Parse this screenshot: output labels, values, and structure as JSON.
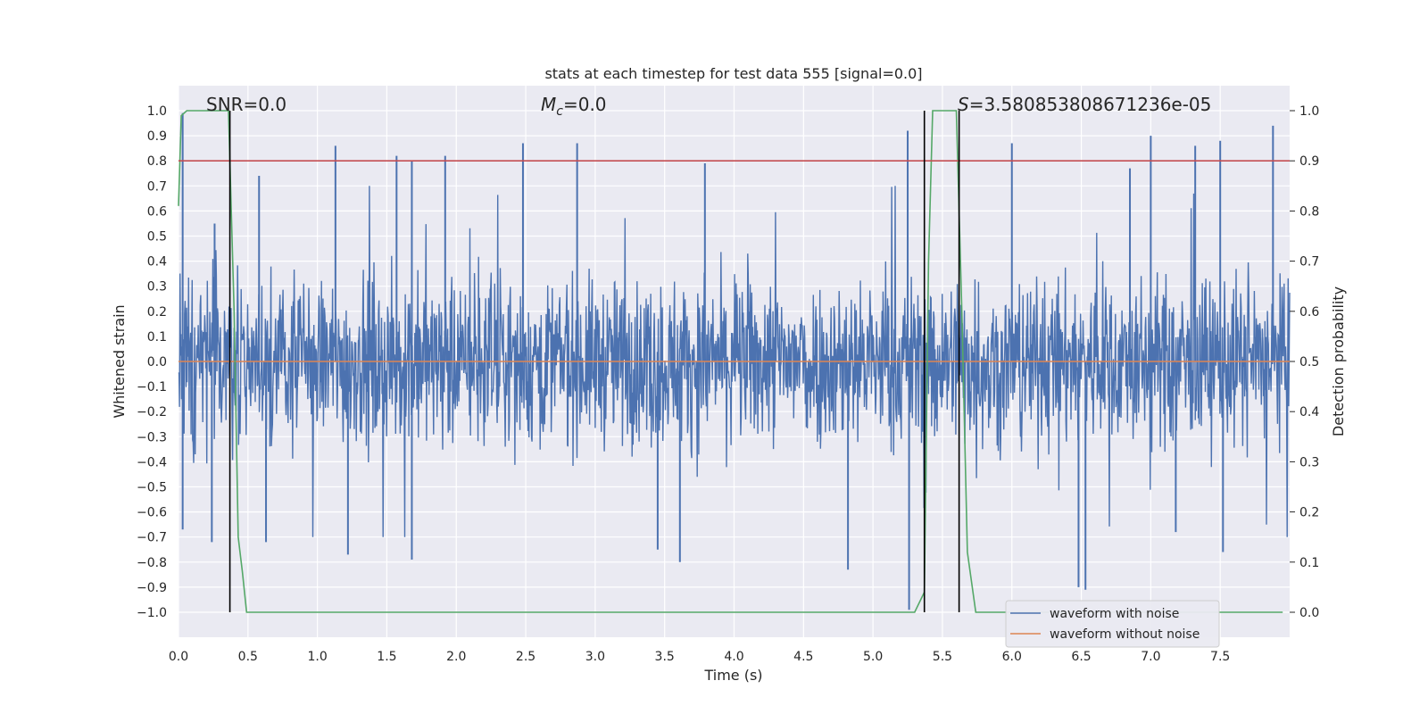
{
  "chart_data": {
    "type": "line",
    "title": "stats at each timestep for test data 555 [signal=0.0]",
    "xlabel": "Time (s)",
    "ylabel_left": "Whitened strain",
    "ylabel_right": "Detection probability",
    "xlim": [
      0.0,
      8.0
    ],
    "ylim_left": [
      -1.08,
      1.1
    ],
    "ylim_right": [
      -0.04,
      1.04
    ],
    "x_ticks": [
      0.0,
      0.5,
      1.0,
      1.5,
      2.0,
      2.5,
      3.0,
      3.5,
      4.0,
      4.5,
      5.0,
      5.5,
      6.0,
      6.5,
      7.0,
      7.5
    ],
    "x_tick_labels": [
      "0.0",
      "0.5",
      "1.0",
      "1.5",
      "2.0",
      "2.5",
      "3.0",
      "3.5",
      "4.0",
      "4.5",
      "5.0",
      "5.5",
      "6.0",
      "6.5",
      "7.0",
      "7.5"
    ],
    "y_ticks_left": [
      1.0,
      0.9,
      0.8,
      0.7,
      0.6,
      0.5,
      0.4,
      0.3,
      0.2,
      0.1,
      0.0,
      -0.1,
      -0.2,
      -0.3,
      -0.4,
      -0.5,
      -0.6,
      -0.7,
      -0.8,
      -0.9,
      -1.0
    ],
    "y_tick_labels_left": [
      "1.0",
      "0.9",
      "0.8",
      "0.7",
      "0.6",
      "0.5",
      "0.4",
      "0.3",
      "0.2",
      "0.1",
      "0.0",
      "−0.1",
      "−0.2",
      "−0.3",
      "−0.4",
      "−0.5",
      "−0.6",
      "−0.7",
      "−0.8",
      "−0.9",
      "−1.0"
    ],
    "y_ticks_right": [
      1.0,
      0.9,
      0.8,
      0.7,
      0.6,
      0.5,
      0.4,
      0.3,
      0.2,
      0.1,
      0.0
    ],
    "y_tick_labels_right": [
      "1.0",
      "0.9",
      "0.8",
      "0.7",
      "0.6",
      "0.5",
      "0.4",
      "0.3",
      "0.2",
      "0.1",
      "0.0"
    ],
    "grid": true,
    "threshold_right": 0.9,
    "vertical_lines_x": [
      0.37,
      5.37,
      5.62
    ],
    "annotations": [
      {
        "text": "SNR=0.0",
        "x": 0.2
      },
      {
        "text": "M",
        "sub": "c",
        "suffix": "=0.0",
        "x": 2.6
      },
      {
        "text": "S",
        "suffix": "=3.580853808671236e-05",
        "x": 5.62
      }
    ],
    "series": [
      {
        "name": "waveform with noise",
        "color": "#4c72b0",
        "axis": "left",
        "description": "noise waveform, amplitude mostly within [-0.45, 0.45] with spikes up to 0.99 and down to -0.99",
        "peak_points": [
          [
            0.03,
            0.99
          ],
          [
            0.26,
            0.55
          ],
          [
            0.58,
            0.74
          ],
          [
            1.13,
            0.86
          ],
          [
            1.57,
            0.82
          ],
          [
            1.68,
            0.8
          ],
          [
            1.92,
            0.82
          ],
          [
            2.48,
            0.87
          ],
          [
            2.87,
            0.87
          ],
          [
            3.79,
            0.79
          ],
          [
            5.25,
            0.92
          ],
          [
            6.0,
            0.87
          ],
          [
            6.85,
            0.77
          ],
          [
            7.0,
            0.9
          ],
          [
            7.32,
            0.86
          ],
          [
            7.5,
            0.88
          ],
          [
            7.88,
            0.94
          ]
        ],
        "trough_points": [
          [
            0.03,
            -0.67
          ],
          [
            0.24,
            -0.72
          ],
          [
            0.63,
            -0.72
          ],
          [
            1.22,
            -0.77
          ],
          [
            1.68,
            -0.79
          ],
          [
            3.45,
            -0.75
          ],
          [
            3.61,
            -0.8
          ],
          [
            4.82,
            -0.83
          ],
          [
            5.26,
            -0.99
          ],
          [
            6.48,
            -0.9
          ],
          [
            6.53,
            -0.91
          ],
          [
            7.18,
            -0.68
          ],
          [
            7.52,
            -0.76
          ]
        ]
      },
      {
        "name": "waveform without noise",
        "color": "#dd8452",
        "axis": "left",
        "x": [
          0.0,
          8.0
        ],
        "y": [
          0.0,
          0.0
        ]
      },
      {
        "name": "detection probability",
        "color": "#55a868",
        "axis": "right",
        "x": [
          0.0,
          0.02,
          0.06,
          0.12,
          0.2,
          0.36,
          0.4,
          0.43,
          0.46,
          0.49,
          5.2,
          5.3,
          5.37,
          5.4,
          5.43,
          5.6,
          5.64,
          5.68,
          5.74,
          7.95
        ],
        "y": [
          0.81,
          0.99,
          1.0,
          1.0,
          1.0,
          1.0,
          0.6,
          0.15,
          0.08,
          0.0,
          0.0,
          0.0,
          0.04,
          0.7,
          1.0,
          1.0,
          0.6,
          0.12,
          0.0,
          0.0
        ]
      },
      {
        "name": "threshold",
        "color": "#c44e52",
        "axis": "right",
        "x": [
          0.0,
          8.0
        ],
        "y": [
          0.9,
          0.9
        ]
      }
    ],
    "legend": {
      "position": "lower-right",
      "entries": [
        {
          "label": "waveform with noise",
          "color": "#4c72b0"
        },
        {
          "label": "waveform without noise",
          "color": "#dd8452"
        }
      ]
    }
  },
  "colors": {
    "axes_bg": "#eaeaf2",
    "grid": "#ffffff",
    "vline": "#000000"
  }
}
